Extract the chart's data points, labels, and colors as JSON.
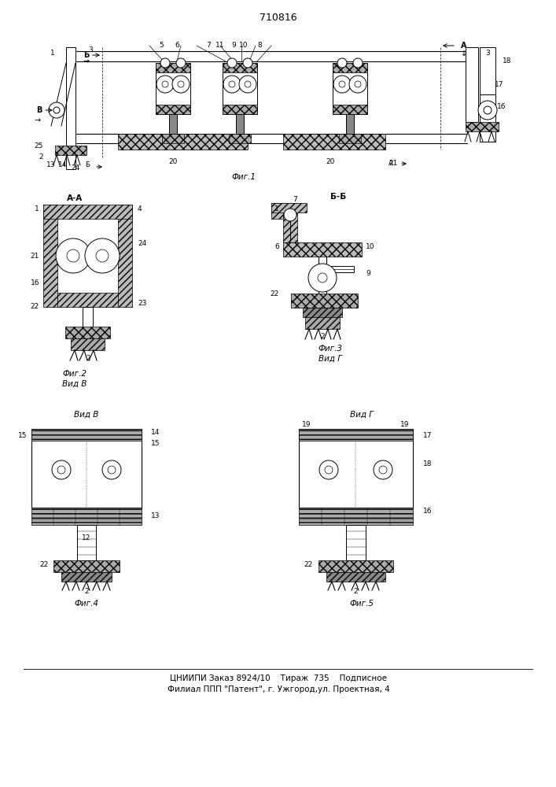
{
  "patent_number": "710816",
  "background_color": "#ffffff",
  "bottom_line1": "ЦНИИПИ Заказ 8924/10    Тираж  735    Подписное",
  "bottom_line2": "Филиал ППП \"Патент\", г. Ужгород,ул. Проектная, 4"
}
